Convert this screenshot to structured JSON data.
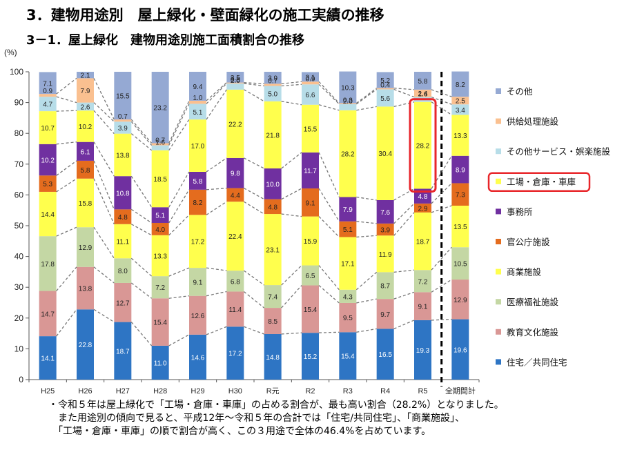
{
  "titles": {
    "main": "3．建物用途別　屋上緑化・壁面緑化の施工実績の推移",
    "sub": "3－1．屋上緑化　建物用途別施工面積割合の推移"
  },
  "notes": [
    "・令和５年は屋上緑化で「工場・倉庫・車庫」の占める割合が、最も高い割合（28.2%）となりました。",
    "　また用途別の傾向で見ると、平成12年～令和５年の合計では「住宅/共同住宅」、「商業施設」、",
    "　「工場・倉庫・車庫」の順で割合が高く、この３用途で全体の46.4%を占めています。"
  ],
  "chart_data": {
    "type": "bar",
    "stacked": true,
    "ylabel": "(%)",
    "ylim": [
      0,
      100
    ],
    "yticks": [
      0,
      10,
      20,
      30,
      40,
      50,
      60,
      70,
      80,
      90,
      100
    ],
    "grid": false,
    "legend_position": "right",
    "categories": [
      "H25",
      "H26",
      "H27",
      "H28",
      "H29",
      "H30",
      "R元",
      "R2",
      "R3",
      "R4",
      "R5",
      "全期間計"
    ],
    "highlight": {
      "series": "工場・倉庫・車庫",
      "category": "R5",
      "color": "#e8262a"
    },
    "separator_before": "全期間計",
    "series": [
      {
        "name": "住宅／共同住宅",
        "color": "#2e75c4",
        "label_color": "#ffffff",
        "values": [
          14.1,
          22.8,
          18.7,
          11.0,
          14.6,
          17.2,
          14.8,
          15.2,
          15.4,
          16.5,
          19.3,
          19.6
        ]
      },
      {
        "name": "教育文化施設",
        "color": "#d99795",
        "label_color": "#222222",
        "values": [
          14.7,
          13.8,
          12.7,
          15.4,
          12.6,
          11.4,
          8.5,
          15.4,
          9.5,
          9.7,
          9.1,
          12.9
        ]
      },
      {
        "name": "医療福祉施設",
        "color": "#c4d7a4",
        "label_color": "#222222",
        "values": [
          17.8,
          12.9,
          8.0,
          7.2,
          9.1,
          6.8,
          7.4,
          6.5,
          4.3,
          8.7,
          7.2,
          10.5
        ]
      },
      {
        "name": "商業施設",
        "color": "#ffff4d",
        "label_color": "#222222",
        "values": [
          14.4,
          15.8,
          11.1,
          13.3,
          17.2,
          22.4,
          23.1,
          15.9,
          17.1,
          11.9,
          18.7,
          13.5
        ]
      },
      {
        "name": "官公庁施設",
        "color": "#e46c1e",
        "label_color": "#222222",
        "values": [
          5.3,
          5.8,
          4.8,
          4.0,
          8.2,
          4.4,
          4.8,
          9.1,
          5.1,
          3.9,
          2.9,
          7.3
        ]
      },
      {
        "name": "事務所",
        "color": "#7030a0",
        "label_color": "#ffffff",
        "values": [
          10.2,
          6.1,
          10.8,
          5.1,
          5.8,
          9.8,
          10.0,
          11.7,
          7.9,
          7.6,
          4.8,
          8.9
        ]
      },
      {
        "name": "工場・倉庫・車庫",
        "color": "#ffff4d",
        "label_color": "#222222",
        "values": [
          10.7,
          10.2,
          13.8,
          18.5,
          17.0,
          22.2,
          21.8,
          15.5,
          28.2,
          30.4,
          28.2,
          13.3
        ]
      },
      {
        "name": "その他サービス・娯楽施設",
        "color": "#b7dde8",
        "label_color": "#222222",
        "values": [
          4.7,
          2.6,
          3.9,
          1.6,
          5.1,
          2.0,
          5.0,
          6.6,
          2.0,
          5.6,
          1.6,
          3.4
        ]
      },
      {
        "name": "供給処理施設",
        "color": "#fac090",
        "label_color": "#222222",
        "values": [
          0.9,
          7.9,
          0.7,
          0.7,
          1.0,
          0.3,
          0.7,
          0.9,
          0.3,
          0.4,
          2.4,
          2.5
        ]
      },
      {
        "name": "その他",
        "color": "#95a9d3",
        "label_color": "#222222",
        "values": [
          7.1,
          2.1,
          15.5,
          23.2,
          9.4,
          3.5,
          3.9,
          3.1,
          10.3,
          5.2,
          5.8,
          8.2
        ]
      }
    ]
  }
}
